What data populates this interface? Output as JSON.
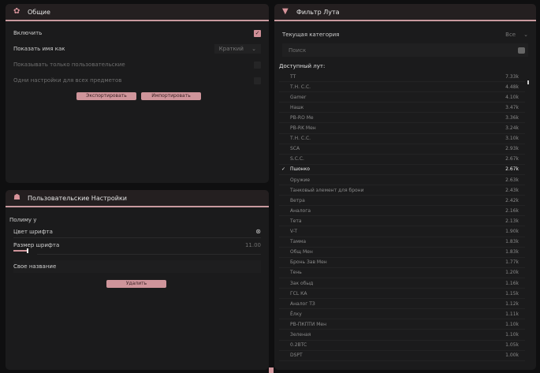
{
  "general": {
    "title": "Общие",
    "icon": "gear-icon",
    "enable_label": "Включить",
    "enable_checked": true,
    "show_name_label": "Показать имя как",
    "show_name_value": "Краткий",
    "only_custom_label": "Показывать только пользовательские",
    "only_custom_checked": false,
    "same_settings_label": "Одни настройки для всех предметов",
    "same_settings_checked": false,
    "export_label": "Экспортировать",
    "import_label": "Импортировать"
  },
  "custom": {
    "title": "Пользовательские Настройки",
    "icon": "user-settings-icon",
    "group_label": "Полиму у",
    "font_color_label": "Цвет шрифта",
    "font_size_label": "Размер шрифта",
    "font_size_value": "11.00",
    "font_size_fraction": 0.1,
    "custom_name_label": "Свое название",
    "delete_label": "Удалить"
  },
  "loot": {
    "title": "Фильтр Лута",
    "icon": "filter-icon",
    "category_label": "Текущая категория",
    "category_value": "Все",
    "search_placeholder": "Поиск",
    "available_label": "Доступный лут:",
    "items": [
      {
        "name": "ТТ",
        "value": "7.33k"
      },
      {
        "name": "Т.Н. С.С.",
        "value": "4.48k"
      },
      {
        "name": "Gamer",
        "value": "4.10k"
      },
      {
        "name": "Нашк",
        "value": "3.47k"
      },
      {
        "name": "PB-RO Me",
        "value": "3.36k"
      },
      {
        "name": "PB-RK Мен",
        "value": "3.24k"
      },
      {
        "name": "Т.Н. С.С.",
        "value": "3.10k"
      },
      {
        "name": "SCA",
        "value": "2.93k"
      },
      {
        "name": "S.C.C.",
        "value": "2.67k"
      },
      {
        "name": "Пшонко",
        "value": "2.67k",
        "checked": true
      },
      {
        "name": "Оружие",
        "value": "2.63k"
      },
      {
        "name": "Танковый элемент для брони",
        "value": "2.43k"
      },
      {
        "name": "Ветра",
        "value": "2.42k"
      },
      {
        "name": "Аналога",
        "value": "2.16k"
      },
      {
        "name": "Тета",
        "value": "2.13k"
      },
      {
        "name": "V-T",
        "value": "1.90k"
      },
      {
        "name": "Тамма",
        "value": "1.83k"
      },
      {
        "name": "Общ Мен",
        "value": "1.83k"
      },
      {
        "name": "Бронь Зав Мен",
        "value": "1.77k"
      },
      {
        "name": "Тень",
        "value": "1.20k"
      },
      {
        "name": "Зак обыд",
        "value": "1.16k"
      },
      {
        "name": "ГСL КА",
        "value": "1.15k"
      },
      {
        "name": "Аналог ТЗ",
        "value": "1.12k"
      },
      {
        "name": "Ёлку",
        "value": "1.11k"
      },
      {
        "name": "PB-ПКПТИ Мен",
        "value": "1.10k"
      },
      {
        "name": "Зеленая",
        "value": "1.10k"
      },
      {
        "name": "0.2BTC",
        "value": "1.05k"
      },
      {
        "name": "DSPT",
        "value": "1.00k"
      }
    ]
  },
  "colors": {
    "accent": "#cf959b",
    "panel": "#1b1b1c",
    "background": "#0f0f10"
  }
}
